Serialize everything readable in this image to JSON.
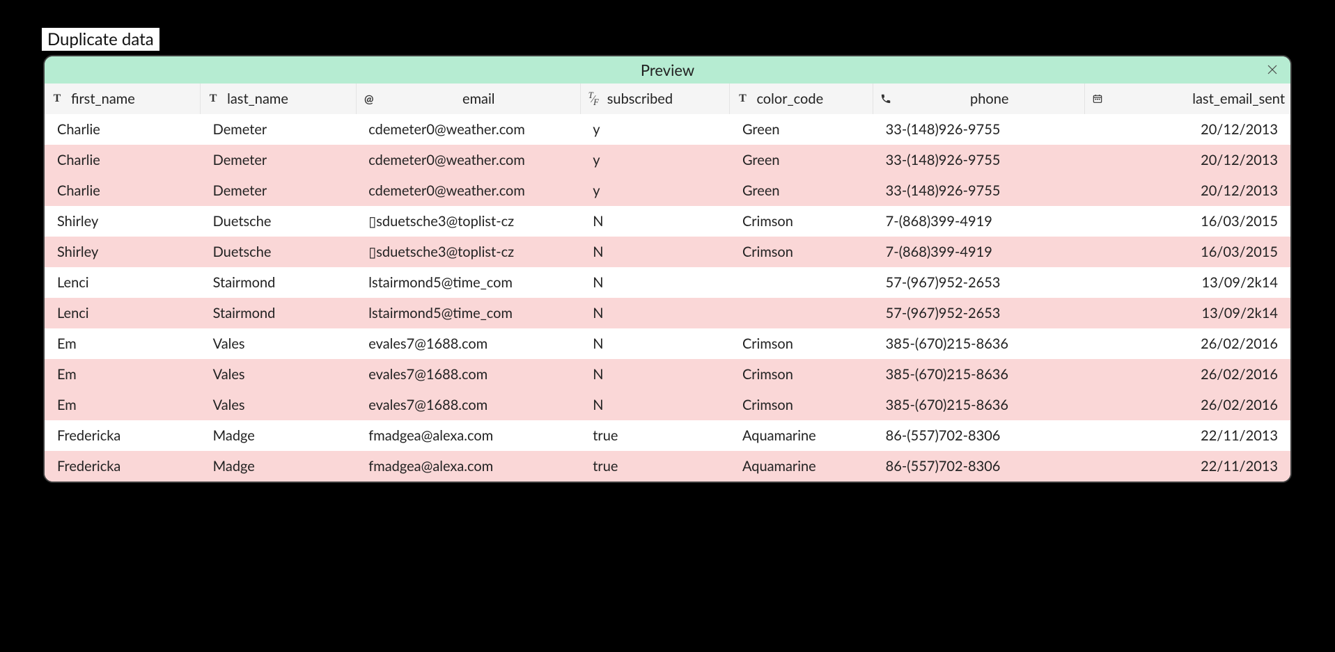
{
  "title": "Duplicate data",
  "panel": {
    "header_label": "Preview",
    "header_bg": "#b6ecd2",
    "duplicate_row_bg": "#fad7d7",
    "normal_row_bg": "#ffffff",
    "thead_bg": "#f5f5f5",
    "border_color": "#3c3c3c"
  },
  "columns": [
    {
      "key": "first_name",
      "label": "first_name",
      "icon": "text",
      "align": "left"
    },
    {
      "key": "last_name",
      "label": "last_name",
      "icon": "text",
      "align": "left"
    },
    {
      "key": "email",
      "label": "email",
      "icon": "at",
      "align": "center"
    },
    {
      "key": "subscribed",
      "label": "subscribed",
      "icon": "boolean",
      "align": "left"
    },
    {
      "key": "color_code",
      "label": "color_code",
      "icon": "text",
      "align": "left"
    },
    {
      "key": "phone",
      "label": "phone",
      "icon": "phone",
      "align": "center"
    },
    {
      "key": "last_email_sent",
      "label": "last_email_sent",
      "icon": "date",
      "align": "right"
    }
  ],
  "rows": [
    {
      "dup": false,
      "cells": [
        "Charlie",
        "Demeter",
        "cdemeter0@weather.com",
        "y",
        "Green",
        "33-(148)926-9755",
        "20/12/2013"
      ]
    },
    {
      "dup": true,
      "cells": [
        "Charlie",
        "Demeter",
        "cdemeter0@weather.com",
        "y",
        "Green",
        "33-(148)926-9755",
        "20/12/2013"
      ]
    },
    {
      "dup": true,
      "cells": [
        "Charlie",
        "Demeter",
        "cdemeter0@weather.com",
        "y",
        "Green",
        "33-(148)926-9755",
        "20/12/2013"
      ]
    },
    {
      "dup": false,
      "cells": [
        "Shirley",
        "Duetsche",
        "▯sduetsche3@toplist-cz",
        "N",
        "Crimson",
        "7-(868)399-4919",
        "16/03/2015"
      ]
    },
    {
      "dup": true,
      "cells": [
        "Shirley",
        "Duetsche",
        "▯sduetsche3@toplist-cz",
        "N",
        "Crimson",
        "7-(868)399-4919",
        "16/03/2015"
      ]
    },
    {
      "dup": false,
      "cells": [
        "Lenci",
        "Stairmond",
        "lstairmond5@time_com",
        "N",
        "",
        "57-(967)952-2653",
        "13/09/2k14"
      ]
    },
    {
      "dup": true,
      "cells": [
        "Lenci",
        "Stairmond",
        "lstairmond5@time_com",
        "N",
        "",
        "57-(967)952-2653",
        "13/09/2k14"
      ]
    },
    {
      "dup": false,
      "cells": [
        "Em",
        "Vales",
        "evales7@1688.com",
        "N",
        "Crimson",
        "385-(670)215-8636",
        "26/02/2016"
      ]
    },
    {
      "dup": true,
      "cells": [
        "Em",
        "Vales",
        "evales7@1688.com",
        "N",
        "Crimson",
        "385-(670)215-8636",
        "26/02/2016"
      ]
    },
    {
      "dup": true,
      "cells": [
        "Em",
        "Vales",
        "evales7@1688.com",
        "N",
        "Crimson",
        "385-(670)215-8636",
        "26/02/2016"
      ]
    },
    {
      "dup": false,
      "cells": [
        "Fredericka",
        "Madge",
        "fmadgea@alexa.com",
        "true",
        "Aquamarine",
        "86-(557)702-8306",
        "22/11/2013"
      ]
    },
    {
      "dup": true,
      "cells": [
        "Fredericka",
        "Madge",
        "fmadgea@alexa.com",
        "true",
        "Aquamarine",
        "86-(557)702-8306",
        "22/11/2013"
      ]
    }
  ],
  "column_aligns": [
    "left",
    "left",
    "left",
    "left",
    "left",
    "left",
    "right"
  ]
}
